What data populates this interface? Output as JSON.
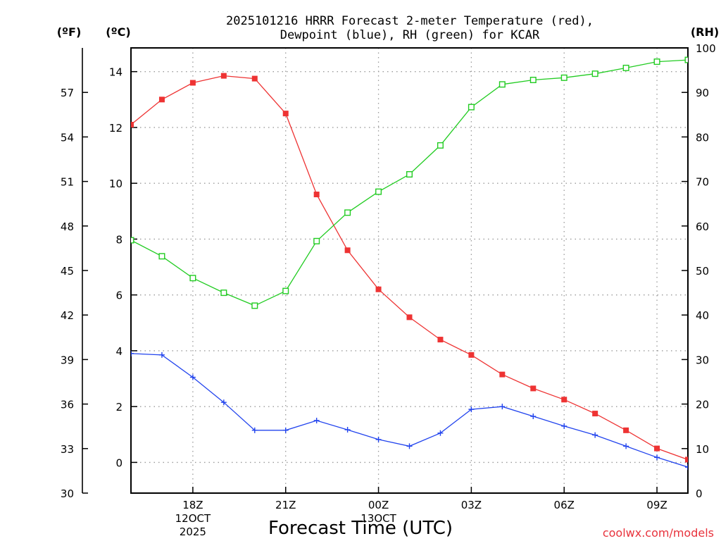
{
  "chart_data": {
    "type": "line",
    "title_line1": "2025101216 HRRR Forecast 2-meter Temperature (red),",
    "title_line2": "Dewpoint (blue), RH (green) for KCAR",
    "xlabel": "Forecast Time (UTC)",
    "units": {
      "fahrenheit": "(ºF)",
      "celsius": "(ºC)",
      "rh": "(RH)"
    },
    "credit": "coolwx.com/models",
    "x_hours": [
      16,
      17,
      18,
      19,
      20,
      21,
      22,
      23,
      24,
      25,
      26,
      27,
      28,
      29,
      30,
      31,
      32,
      33,
      34
    ],
    "xlim": [
      16,
      34
    ],
    "x_ticks": [
      {
        "hour": 18,
        "label": "18Z",
        "sub1": "12OCT",
        "sub2": "2025"
      },
      {
        "hour": 21,
        "label": "21Z",
        "sub1": "",
        "sub2": ""
      },
      {
        "hour": 24,
        "label": "00Z",
        "sub1": "13OCT",
        "sub2": ""
      },
      {
        "hour": 27,
        "label": "03Z",
        "sub1": "",
        "sub2": ""
      },
      {
        "hour": 30,
        "label": "06Z",
        "sub1": "",
        "sub2": ""
      },
      {
        "hour": 33,
        "label": "09Z",
        "sub1": "",
        "sub2": ""
      }
    ],
    "celsius_axis": {
      "ylim": [
        -1.1,
        14.85
      ],
      "ticks": [
        "0",
        "2",
        "4",
        "6",
        "8",
        "10",
        "12",
        "14"
      ]
    },
    "fahrenheit_axis": {
      "ylim": [
        30,
        60
      ],
      "ticks": [
        "30",
        "33",
        "36",
        "39",
        "42",
        "45",
        "48",
        "51",
        "54",
        "57"
      ]
    },
    "rh_axis": {
      "ylim": [
        0,
        100
      ],
      "ticks": [
        "0",
        "10",
        "20",
        "30",
        "40",
        "50",
        "60",
        "70",
        "80",
        "90",
        "100"
      ]
    },
    "series": [
      {
        "name": "Temperature",
        "axis": "celsius",
        "color": "#ee3333",
        "marker": "filled-square",
        "values": [
          12.1,
          13.0,
          13.6,
          13.85,
          13.75,
          12.5,
          9.6,
          7.6,
          6.2,
          5.2,
          4.4,
          3.85,
          3.15,
          2.65,
          2.25,
          1.75,
          1.15,
          0.5,
          0.1
        ]
      },
      {
        "name": "Dewpoint",
        "axis": "celsius",
        "color": "#2244ee",
        "marker": "plus",
        "values": [
          3.9,
          3.85,
          3.05,
          2.15,
          1.15,
          1.15,
          1.5,
          1.17,
          0.82,
          0.58,
          1.05,
          1.9,
          2.0,
          1.65,
          1.3,
          0.98,
          0.58,
          0.18,
          -0.17
        ]
      },
      {
        "name": "RH",
        "axis": "rh",
        "color": "#22cc22",
        "marker": "open-square",
        "values": [
          56.8,
          53.2,
          48.3,
          45.0,
          42.1,
          45.4,
          56.6,
          63.0,
          67.7,
          71.6,
          78.1,
          86.7,
          91.8,
          92.8,
          93.3,
          94.2,
          95.5,
          96.9,
          97.3
        ]
      }
    ]
  }
}
